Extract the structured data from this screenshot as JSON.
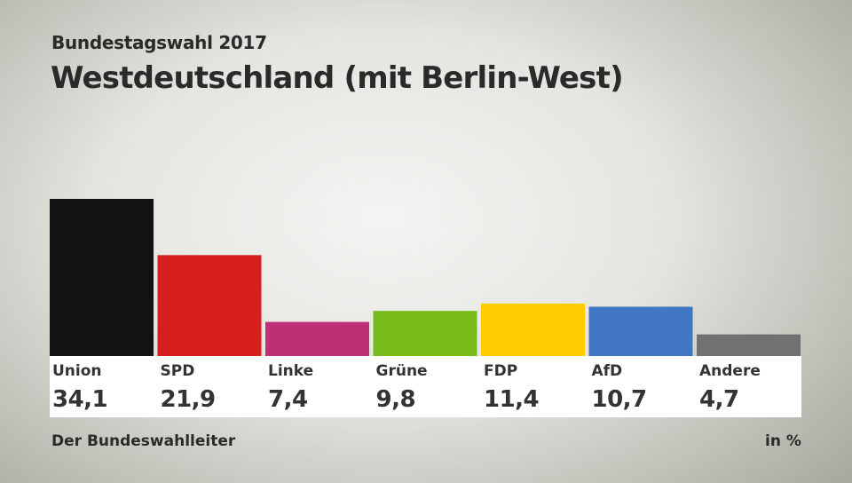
{
  "header": {
    "supertitle": "Bundestagswahl 2017",
    "title": "Westdeutschland (mit Berlin-West)"
  },
  "footer": {
    "source": "Der Bundeswahlleiter",
    "unit": "in %"
  },
  "chart_data": {
    "type": "bar",
    "title": "Westdeutschland (mit Berlin-West)",
    "categories": [
      "Union",
      "SPD",
      "Linke",
      "Grüne",
      "FDP",
      "AfD",
      "Andere"
    ],
    "values": [
      34.1,
      21.9,
      7.4,
      9.8,
      11.4,
      10.7,
      4.7
    ],
    "value_labels": [
      "34,1",
      "21,9",
      "7,4",
      "9,8",
      "11,4",
      "10,7",
      "4,7"
    ],
    "colors": [
      "#121212",
      "#d71f1d",
      "#be3075",
      "#78bc1b",
      "#ffcc00",
      "#4176c2",
      "#707173"
    ],
    "unit": "in %",
    "grid": false
  }
}
